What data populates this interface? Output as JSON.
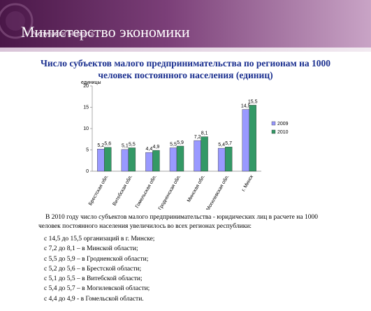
{
  "header": {
    "title": "Министерство экономики",
    "subtitle": "Республики Беларусь"
  },
  "chart_data": {
    "type": "bar",
    "title": "Число субъектов малого   предпринимательства по регионам на 1000 человек постоянного населения (единиц)",
    "y_label": "единицы",
    "categories": [
      "Брестская обл.",
      "Витебская обл.",
      "Гомельская обл.",
      "Гродненская обл.",
      "Минская обл.",
      "Могилевская обл.",
      "г. Минск"
    ],
    "series": [
      {
        "name": "2009",
        "color": "#9999ff",
        "values": [
          5.2,
          5.1,
          4.4,
          5.5,
          7.2,
          5.4,
          14.5
        ],
        "value_labels": [
          "5,2",
          "5,1",
          "4,4",
          "5,5",
          "7,2",
          "5,4",
          "14,5"
        ]
      },
      {
        "name": "2010",
        "color": "#339966",
        "values": [
          5.6,
          5.5,
          4.9,
          5.9,
          8.1,
          5.7,
          15.5
        ],
        "value_labels": [
          "5,6",
          "5,5",
          "4,9",
          "5,9",
          "8,1",
          "5,7",
          "15,5"
        ]
      }
    ],
    "ylim": [
      0,
      20
    ],
    "yticks": [
      0,
      5,
      10,
      15,
      20
    ],
    "legend": "right"
  },
  "text": {
    "paragraph": "В 2010 году число субъектов малого предпринимательства - юридических лиц в расчете на 1000 человек постоянного населения увеличилось во всех регионах республики:",
    "items": [
      "с 14,5 до 15,5 организаций в г. Минске;",
      "с 7,2 до 8,1 – в Минской области;",
      "с  5,5 до 5,9 – в Гродненской области;",
      "с 5,2 до 5,6 – в Брестской области;",
      "с 5,1 до 5,5 – в Витебской области;",
      "с 5,4 до 5,7 – в Могилевской области;",
      "с 4,4 до 4,9 - в Гомельской области."
    ]
  }
}
